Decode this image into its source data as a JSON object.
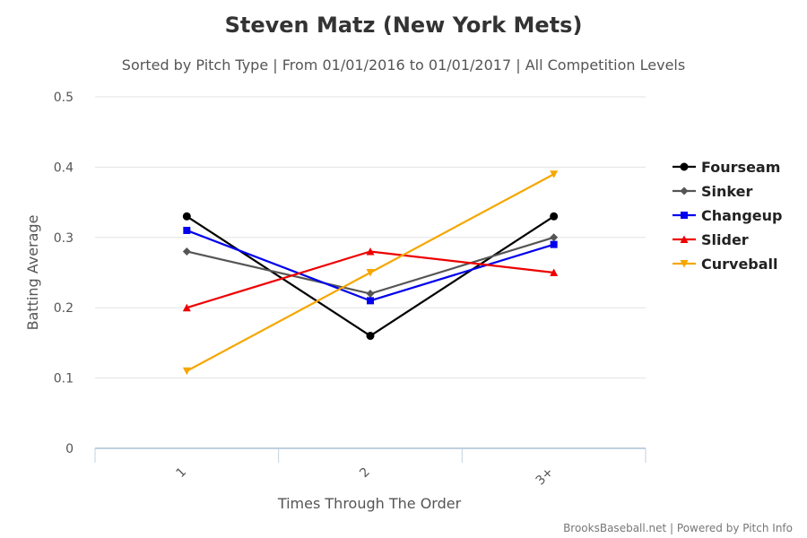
{
  "chart_data": {
    "type": "line",
    "title": "Steven Matz (New York Mets)",
    "subtitle": "Sorted by Pitch Type | From 01/01/2016 to 01/01/2017 | All Competition Levels",
    "xlabel": "Times Through The Order",
    "ylabel": "Batting Average",
    "categories": [
      "1",
      "2",
      "3+"
    ],
    "ylim": [
      0,
      0.5
    ],
    "yticks": [
      "0",
      "0.1",
      "0.2",
      "0.3",
      "0.4",
      "0.5"
    ],
    "grid": true,
    "legend_position": "right",
    "series": [
      {
        "name": "Fourseam",
        "color": "#000000",
        "marker": "circle",
        "values": [
          0.33,
          0.16,
          0.33
        ]
      },
      {
        "name": "Sinker",
        "color": "#555555",
        "marker": "diamond",
        "values": [
          0.28,
          0.22,
          0.3
        ]
      },
      {
        "name": "Changeup",
        "color": "#0000ee",
        "marker": "square",
        "values": [
          0.31,
          0.21,
          0.29
        ]
      },
      {
        "name": "Slider",
        "color": "#ee0000",
        "marker": "triangle",
        "values": [
          0.2,
          0.28,
          0.25
        ]
      },
      {
        "name": "Curveball",
        "color": "#f5a700",
        "marker": "triangle-down",
        "values": [
          0.11,
          0.25,
          0.39
        ]
      }
    ]
  },
  "credits": "BrooksBaseball.net | Powered by Pitch Info"
}
